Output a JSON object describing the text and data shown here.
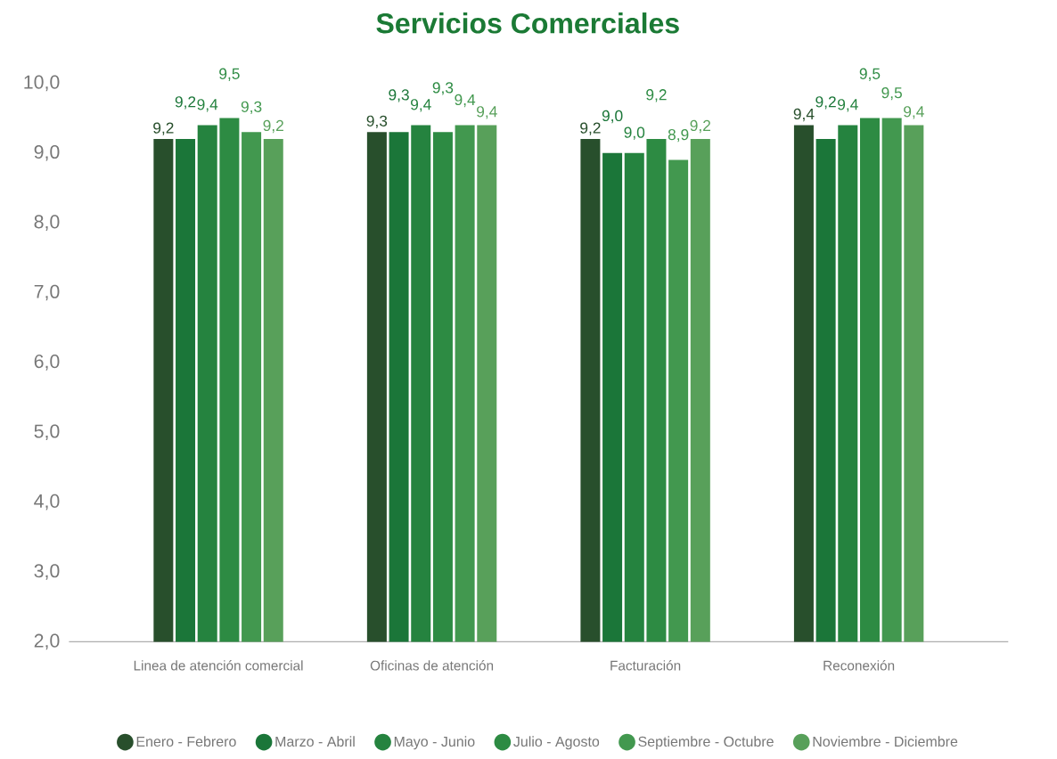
{
  "chart_data": {
    "type": "bar",
    "title": "Servicios Comerciales",
    "categories": [
      "Linea de atención comercial",
      "Oficinas de atención",
      "Facturación",
      "Reconexión"
    ],
    "series": [
      {
        "name": "Enero - Febrero",
        "color": "#284f2c",
        "values": [
          9.2,
          9.3,
          9.2,
          9.4
        ],
        "value_labels": [
          "9,2",
          "9,3",
          "9,2",
          "9,4"
        ]
      },
      {
        "name": "Marzo - Abril",
        "color": "#1b7639",
        "values": [
          9.2,
          9.3,
          9.0,
          9.2
        ],
        "value_labels": [
          "9,2",
          "9,3",
          "9,0",
          "9,2"
        ]
      },
      {
        "name": "Mayo - Junio",
        "color": "#25833f",
        "values": [
          9.4,
          9.4,
          9.0,
          9.4
        ],
        "value_labels": [
          "9,4",
          "9,4",
          "9,0",
          "9,4"
        ]
      },
      {
        "name": "Julio - Agosto",
        "color": "#2d8b43",
        "values": [
          9.5,
          9.3,
          9.2,
          9.5
        ],
        "value_labels": [
          "9,5",
          "9,3",
          "9,2",
          "9,5"
        ]
      },
      {
        "name": "Septiembre - Octubre",
        "color": "#42984f",
        "values": [
          9.3,
          9.4,
          8.9,
          9.5
        ],
        "value_labels": [
          "9,3",
          "9,4",
          "8,9",
          "9,5"
        ]
      },
      {
        "name": "Noviembre - Diciembre",
        "color": "#58a05a",
        "values": [
          9.2,
          9.4,
          9.2,
          9.4
        ],
        "value_labels": [
          "9,2",
          "9,4",
          "9,2",
          "9,4"
        ]
      }
    ],
    "ylim": [
      2,
      10
    ],
    "yticks": [
      {
        "value": 2,
        "label": "2,0"
      },
      {
        "value": 3,
        "label": "3,0"
      },
      {
        "value": 4,
        "label": "4,0"
      },
      {
        "value": 5,
        "label": "5,0"
      },
      {
        "value": 6,
        "label": "6,0"
      },
      {
        "value": 7,
        "label": "7,0"
      },
      {
        "value": 8,
        "label": "8,0"
      },
      {
        "value": 9,
        "label": "9,0"
      },
      {
        "value": 10,
        "label": "10,0"
      }
    ],
    "legend": "bottom"
  }
}
